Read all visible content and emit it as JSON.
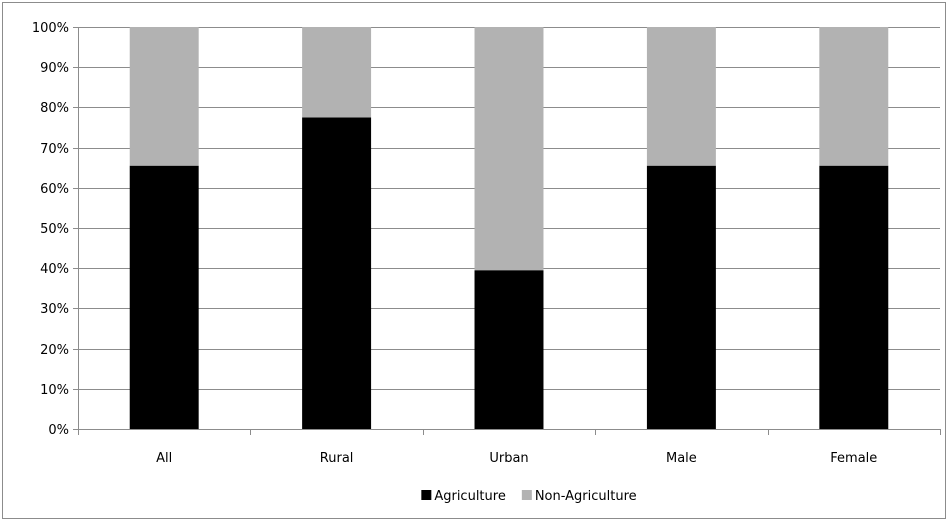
{
  "chart_data": {
    "type": "bar",
    "stacked": true,
    "percent_stacked": true,
    "categories": [
      "All",
      "Rural",
      "Urban",
      "Male",
      "Female"
    ],
    "series": [
      {
        "name": "Agriculture",
        "values": [
          65.5,
          77.5,
          39.5,
          65.5,
          65.5
        ],
        "color": "#000000"
      },
      {
        "name": "Non-Agriculture",
        "values": [
          34.5,
          22.5,
          60.5,
          34.5,
          34.5
        ],
        "color": "#b2b2b2"
      }
    ],
    "yticks": [
      "0%",
      "10%",
      "20%",
      "30%",
      "40%",
      "50%",
      "60%",
      "70%",
      "80%",
      "90%",
      "100%"
    ],
    "ylim": [
      0,
      100
    ],
    "grid": true,
    "legend_position": "bottom"
  }
}
